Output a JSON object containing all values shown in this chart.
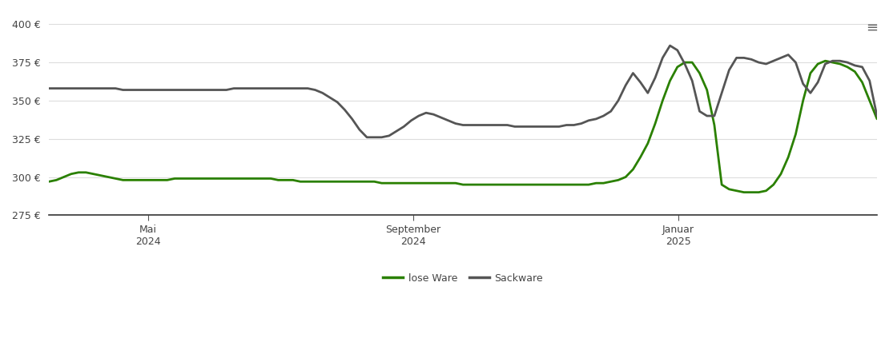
{
  "background_color": "#ffffff",
  "grid_color": "#dddddd",
  "ylim": [
    275,
    408
  ],
  "yticks": [
    275,
    300,
    325,
    350,
    375,
    400
  ],
  "line_lose_ware_color": "#2a8000",
  "line_sackware_color": "#555555",
  "line_width": 2.0,
  "legend_labels": [
    "lose Ware",
    "Sackware"
  ],
  "xtick_positions": [
    0.12,
    0.44,
    0.76
  ],
  "xtick_labels": [
    "Mai\n2024",
    "September\n2024",
    "Januar\n2025"
  ],
  "lose_ware_y": [
    297,
    298,
    300,
    302,
    303,
    303,
    302,
    301,
    300,
    299,
    298,
    298,
    298,
    298,
    298,
    298,
    298,
    299,
    299,
    299,
    299,
    299,
    299,
    299,
    299,
    299,
    299,
    299,
    299,
    299,
    299,
    298,
    298,
    298,
    297,
    297,
    297,
    297,
    297,
    297,
    297,
    297,
    297,
    297,
    297,
    296,
    296,
    296,
    296,
    296,
    296,
    296,
    296,
    296,
    296,
    296,
    295,
    295,
    295,
    295,
    295,
    295,
    295,
    295,
    295,
    295,
    295,
    295,
    295,
    295,
    295,
    295,
    295,
    295,
    296,
    296,
    297,
    298,
    300,
    305,
    313,
    322,
    335,
    350,
    363,
    372,
    375,
    375,
    368,
    357,
    334,
    295,
    292,
    291,
    290,
    290,
    290,
    291,
    295,
    302,
    313,
    328,
    350,
    368,
    374,
    376,
    375,
    374,
    372,
    369,
    362,
    350,
    338
  ],
  "sackware_y": [
    358,
    358,
    358,
    358,
    358,
    358,
    358,
    358,
    358,
    358,
    357,
    357,
    357,
    357,
    357,
    357,
    357,
    357,
    357,
    357,
    357,
    357,
    357,
    357,
    357,
    358,
    358,
    358,
    358,
    358,
    358,
    358,
    358,
    358,
    358,
    358,
    357,
    355,
    352,
    349,
    344,
    338,
    331,
    326,
    326,
    326,
    327,
    330,
    333,
    337,
    340,
    342,
    341,
    339,
    337,
    335,
    334,
    334,
    334,
    334,
    334,
    334,
    334,
    333,
    333,
    333,
    333,
    333,
    333,
    333,
    334,
    334,
    335,
    337,
    338,
    340,
    343,
    350,
    360,
    368,
    362,
    355,
    365,
    378,
    386,
    383,
    374,
    363,
    343,
    340,
    340,
    355,
    370,
    378,
    378,
    377,
    375,
    374,
    376,
    378,
    380,
    375,
    361,
    355,
    362,
    374,
    376,
    376,
    375,
    373,
    372,
    363,
    340
  ]
}
